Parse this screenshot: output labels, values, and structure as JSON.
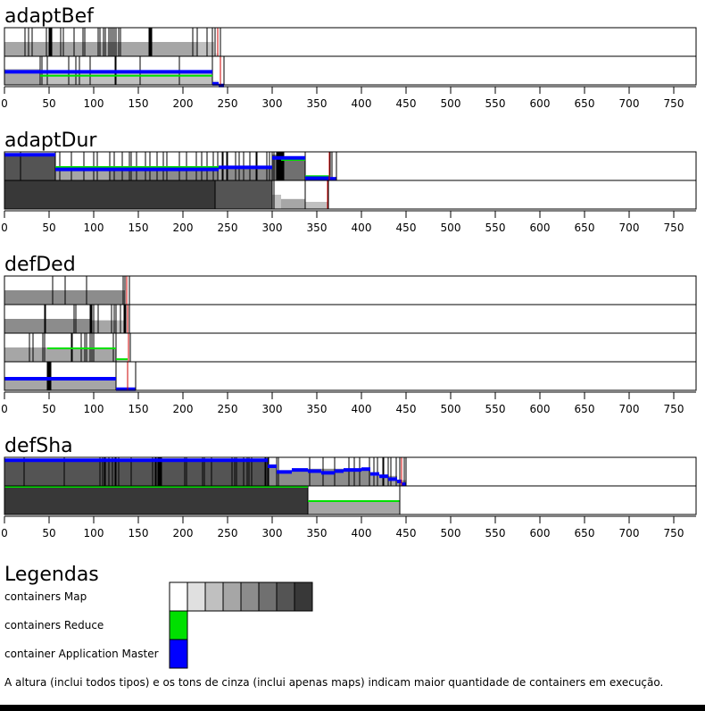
{
  "chart_data": {
    "type": "timeline",
    "axis": {
      "xlim": [
        0,
        775
      ],
      "ticks": [
        0,
        50,
        100,
        150,
        200,
        250,
        300,
        350,
        400,
        450,
        500,
        550,
        600,
        650,
        700,
        750
      ]
    },
    "colors": {
      "map_shades": [
        "#ffffff",
        "#e0e0e0",
        "#c0c0c0",
        "#a6a6a6",
        "#8c8c8c",
        "#707070",
        "#545454",
        "#383838"
      ],
      "reduce": "#00e000",
      "app_master": "#0000ff",
      "marker": "#cc0000"
    },
    "panels": [
      {
        "title": "adaptBef",
        "rows": [
          {
            "segments": [
              [
                0,
                235,
                0.5,
                3
              ],
              [
                216,
                235,
                0.5,
                2
              ],
              [
                235,
                240,
                0.1,
                1
              ]
            ],
            "lines": [
              23,
              27,
              31,
              47,
              50,
              51,
              52,
              53,
              63,
              66,
              78,
              88,
              90,
              105,
              107,
              111,
              113,
              117,
              119,
              121,
              123,
              125,
              128,
              130,
              162,
              163,
              164,
              165,
              211,
              216,
              227,
              233,
              236
            ],
            "marker": 239,
            "end": 242,
            "reduce": [],
            "am": []
          },
          {
            "segments": [
              [
                0,
                40,
                0.55,
                3
              ],
              [
                40,
                233,
                0.5,
                2
              ],
              [
                233,
                240,
                0.15,
                1
              ]
            ],
            "lines": [
              40,
              42,
              48,
              72,
              80,
              84,
              96,
              124,
              125,
              152,
              196,
              233
            ],
            "marker": 242,
            "end": 246,
            "reduce": [
              [
                40,
                233,
                0.35
              ]
            ],
            "am": [
              [
                0,
                233,
                0.52
              ],
              [
                233,
                240,
                0.1
              ],
              [
                240,
                246,
                0.04
              ]
            ]
          }
        ]
      },
      {
        "title": "adaptDur",
        "rows": [
          {
            "segments": [
              [
                0,
                18,
                0.95,
                6
              ],
              [
                18,
                57,
                0.9,
                6
              ],
              [
                57,
                117,
                0.45,
                3
              ],
              [
                117,
                240,
                0.45,
                4
              ],
              [
                240,
                250,
                0.45,
                3
              ],
              [
                250,
                300,
                0.5,
                4
              ],
              [
                300,
                310,
                0.9,
                5
              ],
              [
                310,
                337,
                0.8,
                5
              ],
              [
                337,
                365,
                0.12,
                2
              ],
              [
                365,
                372,
                0.1,
                1
              ]
            ],
            "lines": [
              18,
              57,
              62,
              75,
              89,
              100,
              104,
              118,
              123,
              132,
              140,
              142,
              148,
              158,
              163,
              171,
              178,
              182,
              196,
              204,
              215,
              221,
              227,
              234,
              239,
              244,
              245,
              249,
              250,
              259,
              263,
              268,
              275,
              282,
              283,
              294,
              297,
              300,
              302,
              305,
              306,
              307,
              308,
              309,
              310,
              311,
              312,
              313,
              337,
              365,
              367
            ],
            "marker": 364,
            "end": 372,
            "reduce": [
              [
                57,
                300,
                0.5
              ],
              [
                310,
                337,
                0.75
              ],
              [
                337,
                365,
                0.18
              ]
            ],
            "am": [
              [
                0,
                57,
                0.96
              ],
              [
                57,
                240,
                0.45
              ],
              [
                240,
                300,
                0.52
              ],
              [
                300,
                337,
                0.85
              ],
              [
                337,
                365,
                0.14
              ],
              [
                365,
                372,
                0.12
              ]
            ]
          },
          {
            "segments": [
              [
                0,
                236,
                1.0,
                7
              ],
              [
                236,
                300,
                1.0,
                6
              ],
              [
                300,
                310,
                0.5,
                2
              ],
              [
                310,
                337,
                0.35,
                3
              ],
              [
                337,
                363,
                0.25,
                2
              ]
            ],
            "lines": [
              236,
              300,
              302,
              337,
              363
            ],
            "marker": 362,
            "end": 363,
            "reduce": [],
            "am": []
          }
        ]
      },
      {
        "title": "defDed",
        "rows": [
          {
            "segments": [
              [
                0,
                135,
                0.5,
                4
              ]
            ],
            "lines": [
              54,
              68,
              92,
              133,
              135
            ],
            "marker": 137,
            "end": 140,
            "reduce": [],
            "am": []
          },
          {
            "segments": [
              [
                0,
                45,
                0.5,
                4
              ],
              [
                45,
                97,
                0.5,
                4
              ],
              [
                97,
                125,
                0.45,
                3
              ],
              [
                125,
                135,
                0.45,
                2
              ]
            ],
            "lines": [
              45,
              46,
              78,
              80,
              96,
              97,
              98,
              100,
              105,
              120,
              123,
              125,
              130,
              134,
              135,
              136
            ],
            "marker": 138,
            "end": 140,
            "reduce": [],
            "am": []
          },
          {
            "segments": [
              [
                0,
                28,
                0.5,
                3
              ],
              [
                28,
                125,
                0.5,
                3
              ],
              [
                125,
                138,
                0.1,
                2
              ]
            ],
            "lines": [
              28,
              32,
              43,
              45,
              75,
              76,
              86,
              90,
              92,
              96,
              98,
              100,
              122,
              125
            ],
            "marker": 139,
            "end": 141,
            "reduce": [
              [
                48,
                125,
                0.5
              ],
              [
                125,
                138,
                0.12
              ]
            ],
            "am": []
          },
          {
            "segments": [
              [
                0,
                125,
                0.45,
                3
              ]
            ],
            "lines": [
              48,
              49,
              50,
              51,
              52,
              125,
              138,
              147
            ],
            "marker": 138,
            "end": 147,
            "reduce": [],
            "am": [
              [
                0,
                125,
                0.47
              ],
              [
                125,
                147,
                0.1
              ]
            ]
          }
        ]
      },
      {
        "title": "defSha",
        "rows": [
          {
            "segments": [
              [
                0,
                295,
                0.95,
                6
              ],
              [
                295,
                305,
                0.7,
                4
              ],
              [
                305,
                340,
                0.55,
                4
              ],
              [
                340,
                410,
                0.6,
                4
              ],
              [
                410,
                440,
                0.35,
                3
              ],
              [
                440,
                450,
                0.2,
                3
              ]
            ],
            "lines": [
              22,
              67,
              107,
              110,
              112,
              113,
              117,
              121,
              124,
              125,
              128,
              142,
              166,
              169,
              170,
              172,
              173,
              174,
              175,
              176,
              202,
              204,
              222,
              224,
              232,
              255,
              258,
              260,
              268,
              272,
              274,
              277,
              292,
              293,
              295,
              296,
              305,
              307,
              342,
              357,
              370,
              386,
              392,
              398,
              409,
              414,
              418,
              424,
              425,
              430,
              433,
              439,
              443,
              448
            ],
            "marker": 445,
            "end": 450,
            "reduce": [],
            "am": [
              [
                0,
                295,
                0.96
              ],
              [
                295,
                305,
                0.75
              ],
              [
                305,
                322,
                0.55
              ],
              [
                322,
                340,
                0.62
              ],
              [
                340,
                355,
                0.58
              ],
              [
                355,
                370,
                0.52
              ],
              [
                370,
                380,
                0.58
              ],
              [
                380,
                400,
                0.62
              ],
              [
                400,
                410,
                0.65
              ],
              [
                410,
                420,
                0.48
              ],
              [
                420,
                430,
                0.4
              ],
              [
                430,
                440,
                0.3
              ],
              [
                440,
                445,
                0.22
              ],
              [
                445,
                450,
                0.12
              ]
            ]
          },
          {
            "segments": [
              [
                0,
                340,
                1.0,
                7
              ],
              [
                340,
                443,
                0.5,
                3
              ]
            ],
            "lines": [
              340,
              443
            ],
            "marker": 443,
            "end": 443,
            "reduce": [
              [
                0,
                340,
                1.0
              ],
              [
                340,
                443,
                0.5
              ]
            ],
            "am": []
          }
        ]
      }
    ]
  },
  "legend": {
    "title": "Legendas",
    "map_label": "containers Map",
    "reduce_label": "containers Reduce",
    "am_label": "container Application Master",
    "note": "A altura (inclui todos tipos) e os tons de cinza (inclui apenas maps) indicam maior quantidade de containers em execução."
  }
}
